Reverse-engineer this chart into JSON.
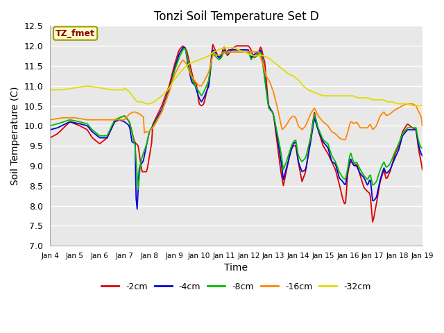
{
  "title": "Tonzi Soil Temperature Set D",
  "xlabel": "Time",
  "ylabel": "Soil Temperature (C)",
  "ylim": [
    7.0,
    12.5
  ],
  "x_tick_labels": [
    "Jan 4",
    "Jan 5",
    "Jan 6",
    "Jan 7",
    "Jan 8",
    "Jan 9",
    "Jan 10",
    "Jan 11",
    "Jan 12",
    "Jan 13",
    "Jan 14",
    "Jan 15",
    "Jan 16",
    "Jan 17",
    "Jan 18",
    "Jan 19"
  ],
  "annotation_text": "TZ_fmet",
  "annotation_color": "#8B0000",
  "annotation_bg": "#FFFFCC",
  "annotation_border": "#999900",
  "series_colors": {
    "-2cm": "#DD0000",
    "-4cm": "#0000DD",
    "-8cm": "#00BB00",
    "-16cm": "#FF8800",
    "-32cm": "#DDDD00"
  },
  "background_color": "#E8E8E8",
  "grid_color": "#FFFFFF",
  "n_points": 360,
  "days": 15
}
